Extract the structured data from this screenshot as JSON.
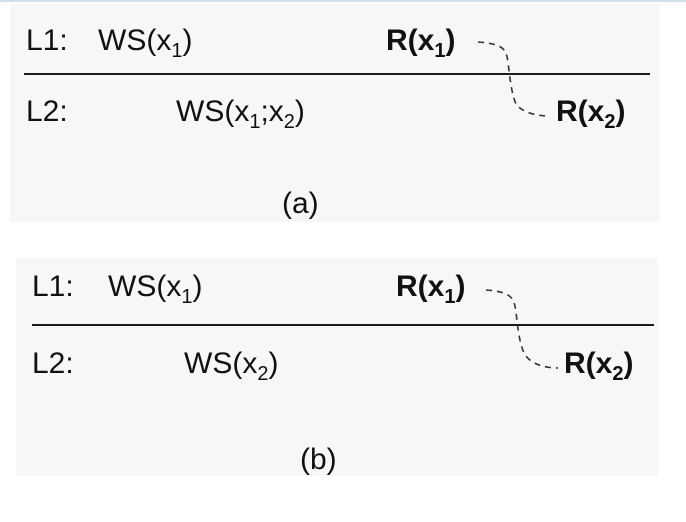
{
  "panels": [
    {
      "id": "a",
      "caption": "(a)",
      "level1": {
        "label": "L1:",
        "ws": {
          "prefix": "WS(x",
          "sub": "1",
          "suffix": ")"
        },
        "read": {
          "prefix": "R(x",
          "sub": "1",
          "suffix": ")"
        }
      },
      "level2": {
        "label": "L2:",
        "ws": {
          "prefix": "WS(x",
          "sub1": "1",
          "mid": ";x",
          "sub2": "2",
          "suffix": ")"
        },
        "read": {
          "prefix": "R(x",
          "sub": "2",
          "suffix": ")"
        }
      }
    },
    {
      "id": "b",
      "caption": "(b)",
      "level1": {
        "label": "L1:",
        "ws": {
          "prefix": "WS(x",
          "sub": "1",
          "suffix": ")"
        },
        "read": {
          "prefix": "R(x",
          "sub": "1",
          "suffix": ")"
        }
      },
      "level2": {
        "label": "L2:",
        "ws": {
          "prefix": "WS(x",
          "sub": "2",
          "suffix": ")"
        },
        "read": {
          "prefix": "R(x",
          "sub": "2",
          "suffix": ")"
        }
      }
    }
  ],
  "colors": {
    "text": "#111111",
    "panel_background": "#f7f7f7",
    "separator": "#1a1a1a",
    "dashed_link": "#333333"
  }
}
